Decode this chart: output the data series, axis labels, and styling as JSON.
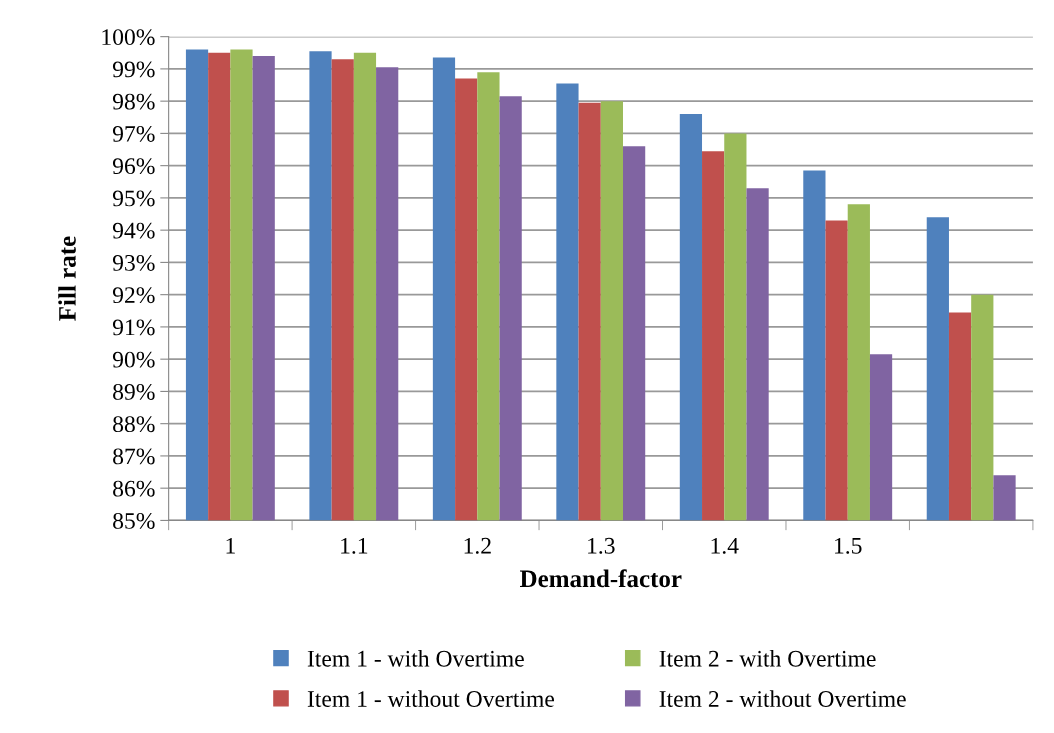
{
  "chart_data": {
    "type": "bar",
    "xlabel": "Demand-factor",
    "ylabel": "Fill rate",
    "categories": [
      "1",
      "1.1",
      "1.2",
      "1.3",
      "1.4",
      "1.5",
      null
    ],
    "series": [
      {
        "name": "Item 1 - with Overtime",
        "color": "#4f81bd",
        "values": [
          99.6,
          99.55,
          99.35,
          98.55,
          97.6,
          95.85,
          94.4
        ]
      },
      {
        "name": "Item 1 - without Overtime",
        "color": "#c0504d",
        "values": [
          99.5,
          99.3,
          98.7,
          97.95,
          96.45,
          94.3,
          91.45
        ]
      },
      {
        "name": "Item 2 - with Overtime",
        "color": "#9bbb59",
        "values": [
          99.6,
          99.5,
          98.9,
          98.0,
          97.0,
          94.8,
          92.0
        ]
      },
      {
        "name": "Item 2 - without Overtime",
        "color": "#8064a2",
        "values": [
          99.4,
          99.05,
          98.15,
          96.6,
          95.3,
          90.15,
          86.4
        ]
      }
    ],
    "ylim": [
      85,
      100
    ],
    "yticks": [
      {
        "value": 85,
        "label": "85%"
      },
      {
        "value": 86,
        "label": "86%"
      },
      {
        "value": 87,
        "label": "87%"
      },
      {
        "value": 88,
        "label": "88%"
      },
      {
        "value": 89,
        "label": "89%"
      },
      {
        "value": 90,
        "label": "90%"
      },
      {
        "value": 91,
        "label": "91%"
      },
      {
        "value": 92,
        "label": "92%"
      },
      {
        "value": 93,
        "label": "93%"
      },
      {
        "value": 94,
        "label": "94%"
      },
      {
        "value": 95,
        "label": "95%"
      },
      {
        "value": 96,
        "label": "96%"
      },
      {
        "value": 97,
        "label": "97%"
      },
      {
        "value": 98,
        "label": "98%"
      },
      {
        "value": 99,
        "label": "99%"
      },
      {
        "value": 100,
        "label": "100%"
      }
    ],
    "grid": "y",
    "legend": "bottom"
  }
}
